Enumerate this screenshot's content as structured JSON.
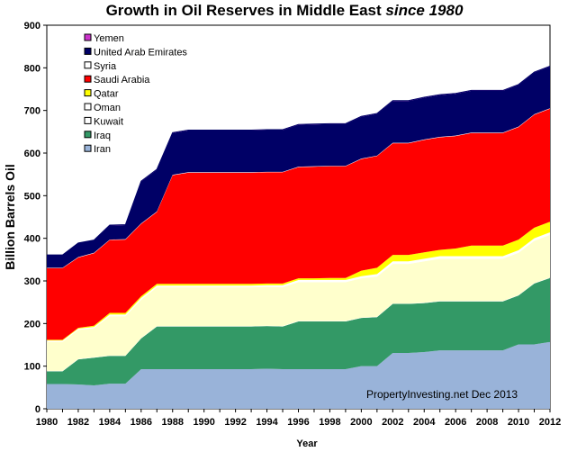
{
  "chart_data": {
    "type": "area",
    "stacked": true,
    "title_main": "Growth in Oil Reserves in Middle East ",
    "title_emphasis": "since 1980",
    "xlabel": "Year",
    "ylabel": "Billion Barrels Oil",
    "credit": "PropertyInvesting.net  Dec 2013",
    "xlim": [
      1980,
      2012
    ],
    "ylim": [
      0,
      900
    ],
    "x_ticks": [
      1980,
      1982,
      1984,
      1986,
      1988,
      1990,
      1992,
      1994,
      1996,
      1998,
      2000,
      2002,
      2004,
      2006,
      2008,
      2010,
      2012
    ],
    "y_ticks": [
      0,
      100,
      200,
      300,
      400,
      500,
      600,
      700,
      800,
      900
    ],
    "x": [
      1980,
      1981,
      1982,
      1983,
      1984,
      1985,
      1986,
      1987,
      1988,
      1989,
      1990,
      1991,
      1992,
      1993,
      1994,
      1995,
      1996,
      1997,
      1998,
      1999,
      2000,
      2001,
      2002,
      2003,
      2004,
      2005,
      2006,
      2007,
      2008,
      2009,
      2010,
      2011,
      2012
    ],
    "series": [
      {
        "name": "Iran",
        "color": "#99b3d9",
        "values": [
          58,
          58,
          57,
          55,
          59,
          59,
          93,
          93,
          93,
          93,
          93,
          93,
          93,
          93,
          94,
          93,
          93,
          93,
          93,
          93,
          100,
          100,
          131,
          131,
          133,
          137,
          137,
          137,
          137,
          137,
          151,
          151,
          157
        ]
      },
      {
        "name": "Iraq",
        "color": "#339966",
        "values": [
          30,
          30,
          59,
          65,
          65,
          65,
          72,
          100,
          100,
          100,
          100,
          100,
          100,
          100,
          100,
          100,
          112,
          112,
          112,
          112,
          113,
          115,
          115,
          115,
          115,
          115,
          115,
          115,
          115,
          115,
          115,
          143,
          150
        ]
      },
      {
        "name": "Kuwait",
        "color": "#ffffff",
        "values": [
          1,
          1,
          1,
          1,
          1,
          1,
          1,
          1,
          1,
          1,
          1,
          1,
          1,
          1,
          1,
          1,
          1,
          1,
          1,
          1,
          1,
          1,
          1,
          1,
          1,
          1,
          1,
          1,
          1,
          1,
          1,
          1,
          1
        ]
      },
      {
        "name": "Oman",
        "color": "#ffffcc",
        "values": [
          68,
          68,
          68,
          68,
          92,
          92,
          90,
          91,
          91,
          91,
          91,
          91,
          91,
          91,
          91,
          91,
          91,
          91,
          91,
          91,
          92,
          94,
          93,
          93,
          97,
          99,
          99,
          99,
          99,
          99,
          99,
          99,
          100
        ]
      },
      {
        "name": "Oman",
        "color": "#ffffff",
        "values": [
          3,
          3,
          3,
          3,
          4,
          4,
          4,
          4,
          4,
          4,
          4,
          4,
          4,
          4,
          4,
          5,
          5,
          5,
          5,
          5,
          5,
          6,
          6,
          6,
          6,
          6,
          6,
          6,
          6,
          6,
          6,
          6,
          6
        ]
      },
      {
        "name": "Qatar",
        "color": "#ffff00",
        "values": [
          2,
          2,
          2,
          3,
          4,
          4,
          4,
          4,
          4,
          4,
          4,
          4,
          4,
          4,
          4,
          4,
          4,
          4,
          5,
          5,
          13,
          15,
          15,
          15,
          15,
          15,
          18,
          25,
          25,
          25,
          25,
          25,
          25
        ]
      },
      {
        "name": "Saudi Arabia",
        "color": "#ff0000",
        "values": [
          168,
          168,
          165,
          170,
          171,
          172,
          170,
          169,
          255,
          261,
          261,
          261,
          261,
          261,
          261,
          261,
          261,
          262,
          262,
          262,
          262,
          262,
          262,
          262,
          264,
          264,
          264,
          264,
          264,
          264,
          264,
          265,
          265
        ]
      },
      {
        "name": "Syria",
        "color": "#ffffff",
        "values": [
          1,
          1,
          1,
          1,
          1,
          1,
          1,
          1,
          1,
          1,
          1,
          1,
          1,
          1,
          1,
          1,
          1,
          1,
          1,
          1,
          1,
          1,
          1,
          1,
          1,
          1,
          1,
          1,
          1,
          1,
          1,
          1,
          1
        ]
      },
      {
        "name": "United Arab Emirates",
        "color": "#000066",
        "values": [
          30,
          30,
          33,
          30,
          33,
          33,
          98,
          98,
          98,
          98,
          98,
          98,
          98,
          98,
          98,
          98,
          98,
          98,
          98,
          98,
          98,
          98,
          98,
          98,
          98,
          98,
          98,
          98,
          98,
          98,
          98,
          98,
          98
        ]
      },
      {
        "name": "Yemen",
        "color": "#cc33cc",
        "values": [
          0,
          0,
          0,
          0,
          1,
          1,
          1,
          1,
          1,
          1,
          1,
          1,
          1,
          1,
          1,
          1,
          1,
          1,
          1,
          1,
          1,
          1,
          1,
          1,
          1,
          1,
          1,
          1,
          1,
          1,
          1,
          1,
          1
        ]
      }
    ],
    "legend": {
      "placement": "top-left",
      "entries": [
        {
          "name": "Yemen",
          "color": "#cc33cc"
        },
        {
          "name": "United Arab Emirates",
          "color": "#000066"
        },
        {
          "name": "Syria",
          "color": "#ffffff"
        },
        {
          "name": "Saudi Arabia",
          "color": "#ff0000"
        },
        {
          "name": "Qatar",
          "color": "#ffff00"
        },
        {
          "name": "Oman",
          "color": "#ffffff"
        },
        {
          "name": "Kuwait",
          "color": "#ffffff"
        },
        {
          "name": "Iraq",
          "color": "#339966"
        },
        {
          "name": "Iran",
          "color": "#99b3d9"
        }
      ]
    }
  }
}
